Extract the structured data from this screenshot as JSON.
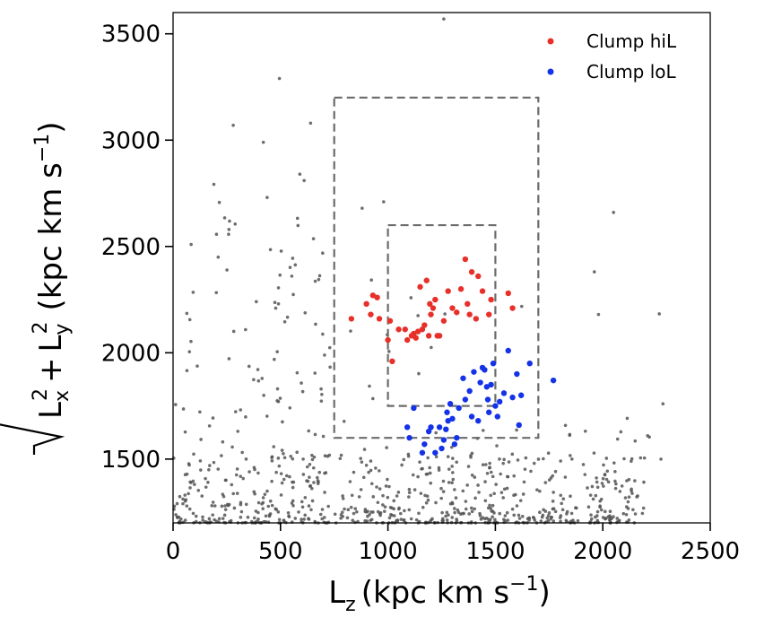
{
  "chart_data": {
    "type": "scatter",
    "xlabel": "L_z (kpc km s^-1)",
    "ylabel": "√(L_x^2 + L_y^2) (kpc km s^-1)",
    "xlabel_parts": {
      "main": "L",
      "sub": "z",
      "units": "(kpc km s",
      "exp": "−1",
      "close": ")"
    },
    "ylabel_parts": {
      "main": "L",
      "sub_x": "x",
      "sub_y": "y",
      "sq": "2",
      "plus": "+",
      "units": "(kpc km s",
      "exp": "−1",
      "close": ")"
    },
    "xlim": [
      0,
      2500
    ],
    "ylim": [
      1200,
      3600
    ],
    "xticks": [
      0,
      500,
      1000,
      1500,
      2000,
      2500
    ],
    "yticks": [
      1500,
      2000,
      2500,
      3000,
      3500
    ],
    "xtick_labels": [
      "0",
      "500",
      "1000",
      "1500",
      "2000",
      "2500"
    ],
    "ytick_labels": [
      "1500",
      "2000",
      "2500",
      "3000",
      "3500"
    ],
    "grid": false,
    "legend_position": "top-right",
    "boxes": [
      {
        "x0": 750,
        "x1": 1700,
        "y0": 1600,
        "y1": 3200
      },
      {
        "x0": 1000,
        "x1": 1500,
        "y0": 1750,
        "y1": 2600
      }
    ],
    "series": [
      {
        "name": "Clump hiL",
        "color": "#e8302a",
        "points": [
          [
            830,
            2160
          ],
          [
            900,
            2230
          ],
          [
            920,
            2180
          ],
          [
            930,
            2270
          ],
          [
            950,
            2260
          ],
          [
            960,
            2160
          ],
          [
            1000,
            2060
          ],
          [
            1010,
            2150
          ],
          [
            1020,
            1960
          ],
          [
            1050,
            2110
          ],
          [
            1080,
            2110
          ],
          [
            1090,
            2060
          ],
          [
            1110,
            2080
          ],
          [
            1120,
            2090
          ],
          [
            1130,
            2070
          ],
          [
            1140,
            2100
          ],
          [
            1150,
            2310
          ],
          [
            1160,
            2110
          ],
          [
            1170,
            2130
          ],
          [
            1180,
            2340
          ],
          [
            1190,
            2080
          ],
          [
            1200,
            2180
          ],
          [
            1210,
            2210
          ],
          [
            1220,
            2250
          ],
          [
            1230,
            2080
          ],
          [
            1240,
            2080
          ],
          [
            1260,
            2150
          ],
          [
            1280,
            2290
          ],
          [
            1300,
            2210
          ],
          [
            1320,
            2190
          ],
          [
            1340,
            2300
          ],
          [
            1360,
            2440
          ],
          [
            1370,
            2230
          ],
          [
            1380,
            2180
          ],
          [
            1390,
            2380
          ],
          [
            1410,
            2160
          ],
          [
            1420,
            2360
          ],
          [
            1440,
            2290
          ],
          [
            1470,
            2180
          ],
          [
            1480,
            2250
          ],
          [
            1560,
            2280
          ],
          [
            1580,
            2210
          ],
          [
            1195,
            2230
          ]
        ]
      },
      {
        "name": "Clump loL",
        "color": "#1432e8",
        "points": [
          [
            1090,
            1650
          ],
          [
            1100,
            1600
          ],
          [
            1120,
            1740
          ],
          [
            1160,
            1530
          ],
          [
            1170,
            1570
          ],
          [
            1190,
            1630
          ],
          [
            1200,
            1650
          ],
          [
            1220,
            1530
          ],
          [
            1240,
            1650
          ],
          [
            1250,
            1550
          ],
          [
            1260,
            1590
          ],
          [
            1270,
            1640
          ],
          [
            1275,
            1720
          ],
          [
            1280,
            1680
          ],
          [
            1290,
            1760
          ],
          [
            1300,
            1690
          ],
          [
            1310,
            1570
          ],
          [
            1320,
            1600
          ],
          [
            1330,
            1740
          ],
          [
            1350,
            1880
          ],
          [
            1360,
            1780
          ],
          [
            1380,
            1820
          ],
          [
            1390,
            1700
          ],
          [
            1400,
            1910
          ],
          [
            1420,
            1680
          ],
          [
            1430,
            1860
          ],
          [
            1440,
            1930
          ],
          [
            1450,
            1920
          ],
          [
            1460,
            1840
          ],
          [
            1470,
            1720
          ],
          [
            1480,
            1850
          ],
          [
            1490,
            1950
          ],
          [
            1500,
            1750
          ],
          [
            1510,
            1700
          ],
          [
            1520,
            1770
          ],
          [
            1540,
            1810
          ],
          [
            1560,
            2010
          ],
          [
            1580,
            1790
          ],
          [
            1600,
            1900
          ],
          [
            1610,
            1660
          ],
          [
            1620,
            1800
          ],
          [
            1660,
            1950
          ],
          [
            1770,
            1870
          ],
          [
            1465,
            1780
          ]
        ]
      }
    ]
  }
}
